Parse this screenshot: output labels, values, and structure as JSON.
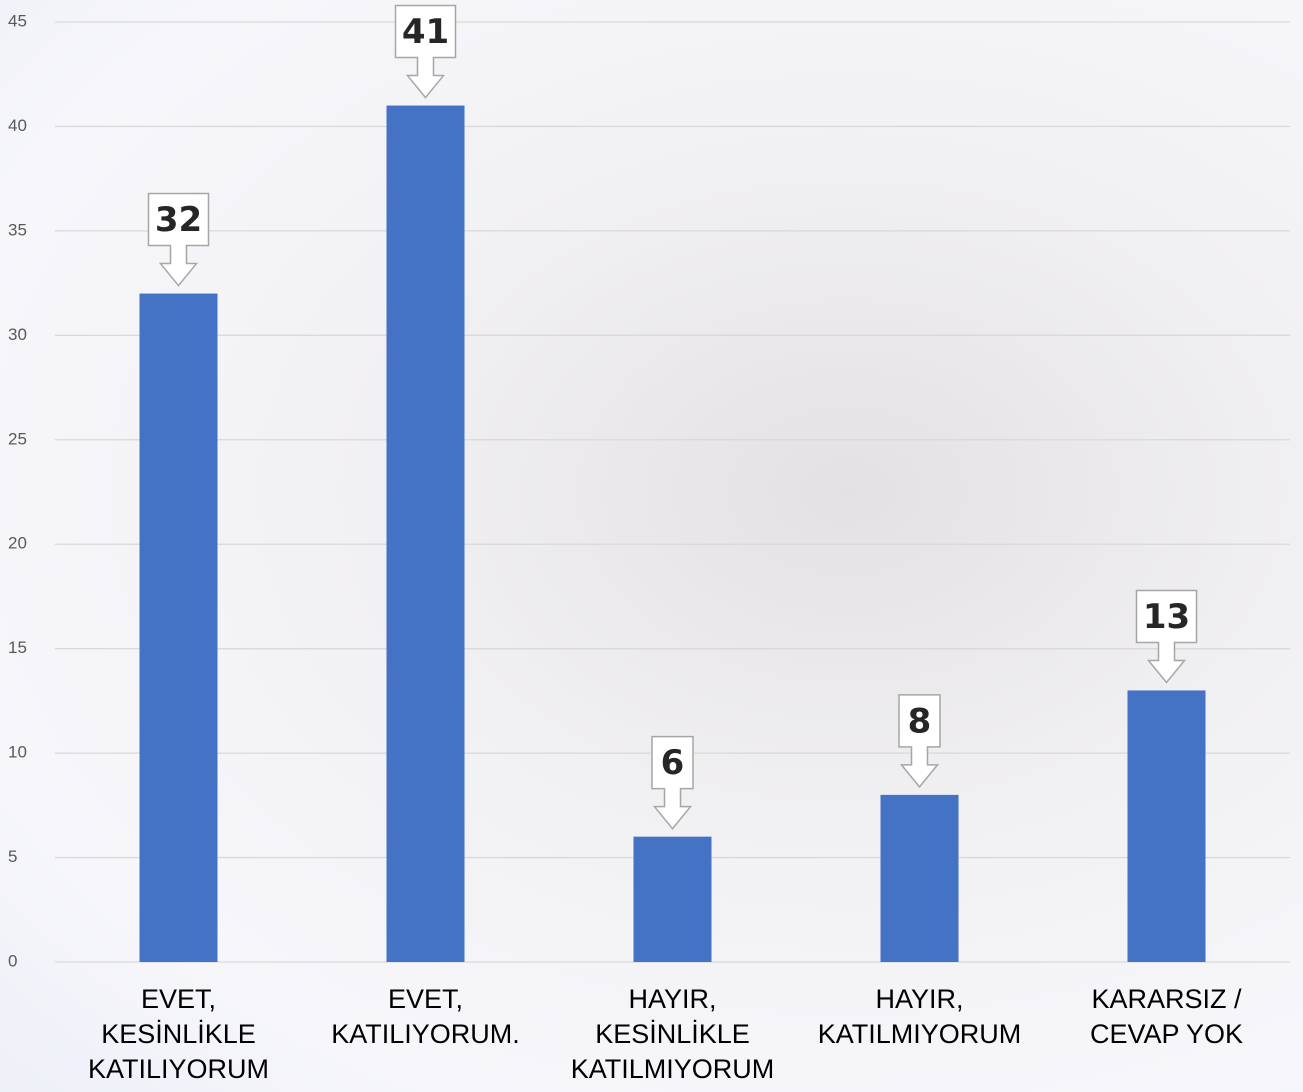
{
  "chart_data": {
    "type": "bar",
    "categories": [
      "EVET,\nKESİNLİKLE\nKATILIYORUM",
      "EVET,\nKATILIYORUM.",
      "HAYIR,\nKESİNLİKLE\nKATILMIYORUM",
      "HAYIR,\nKATILMIYORUM",
      "KARARSIZ /\nCEVAP YOK"
    ],
    "values": [
      32,
      41,
      6,
      8,
      13
    ],
    "color": "#4472c4",
    "ylim": [
      0,
      45
    ],
    "yticks": [
      0,
      5,
      10,
      15,
      20,
      25,
      30,
      35,
      40,
      45
    ],
    "grid": true
  }
}
